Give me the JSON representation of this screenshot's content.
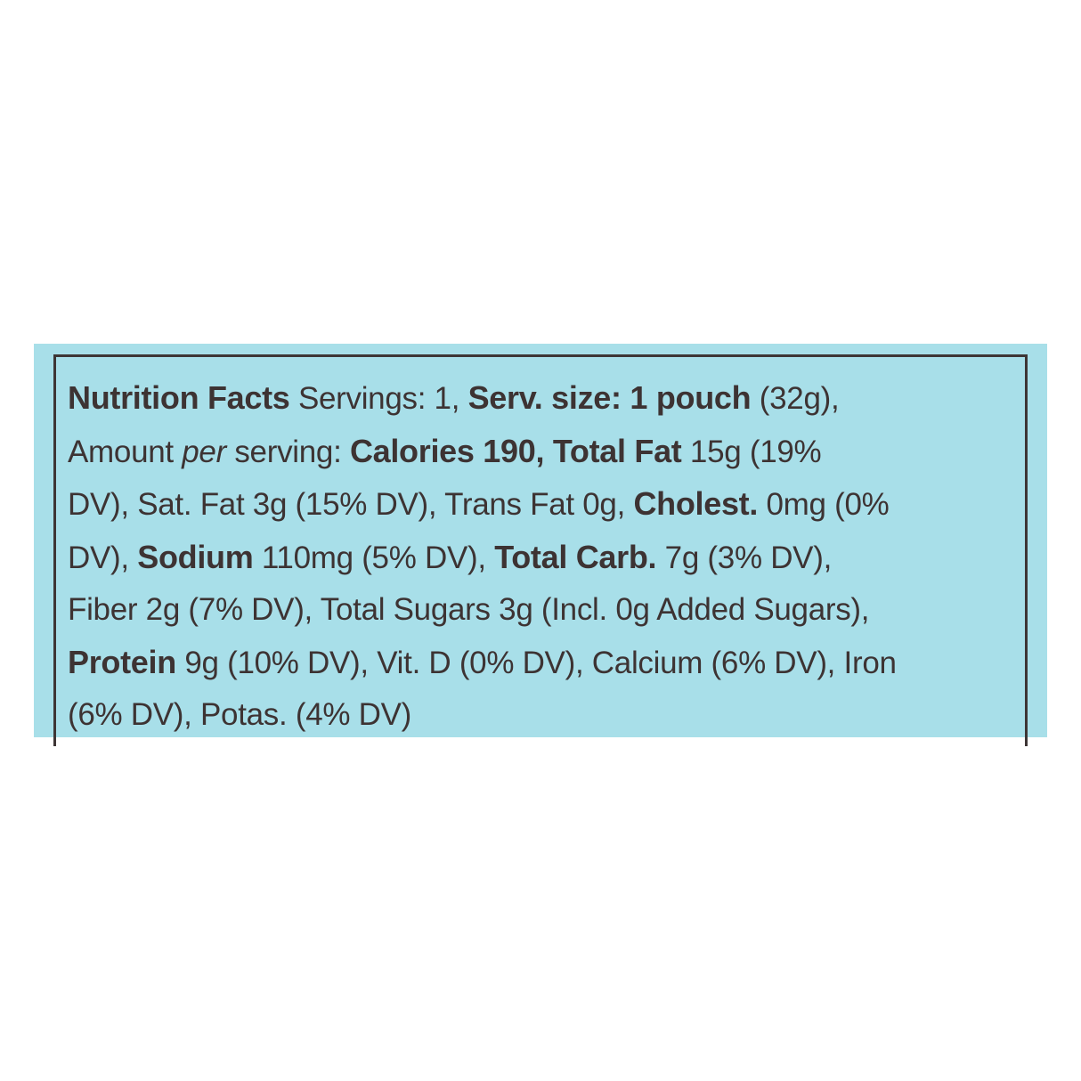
{
  "label": {
    "background_color": "#a8dfe9",
    "text_color": "#3d3333",
    "lines": [
      [
        {
          "t": "Nutrition Facts",
          "b": true
        },
        {
          "t": " Servings: 1, ",
          "b": false
        },
        {
          "t": "Serv. size: 1 pouch",
          "b": true
        },
        {
          "t": " (32g),",
          "b": false
        }
      ],
      [
        {
          "t": "Amount ",
          "b": false
        },
        {
          "t": "per",
          "b": false,
          "i": true
        },
        {
          "t": " serving: ",
          "b": false
        },
        {
          "t": "Calories 190, Total Fat",
          "b": true
        },
        {
          "t": " 15g (19%",
          "b": false
        }
      ],
      [
        {
          "t": "DV), Sat. Fat 3g (15% DV), Trans Fat 0g, ",
          "b": false
        },
        {
          "t": "Cholest.",
          "b": true
        },
        {
          "t": " 0mg (0%",
          "b": false
        }
      ],
      [
        {
          "t": "DV), ",
          "b": false
        },
        {
          "t": "Sodium",
          "b": true
        },
        {
          "t": " 110mg (5% DV), ",
          "b": false
        },
        {
          "t": "Total Carb.",
          "b": true
        },
        {
          "t": " 7g (3% DV),",
          "b": false
        }
      ],
      [
        {
          "t": "Fiber 2g (7% DV), Total Sugars 3g (Incl. 0g Added Sugars),",
          "b": false
        }
      ],
      [
        {
          "t": "Protein",
          "b": true
        },
        {
          "t": " 9g (10% DV), Vit. D (0% DV), Calcium (6% DV), Iron",
          "b": false
        }
      ],
      [
        {
          "t": "(6% DV), Potas. (4% DV)",
          "b": false
        }
      ]
    ]
  }
}
